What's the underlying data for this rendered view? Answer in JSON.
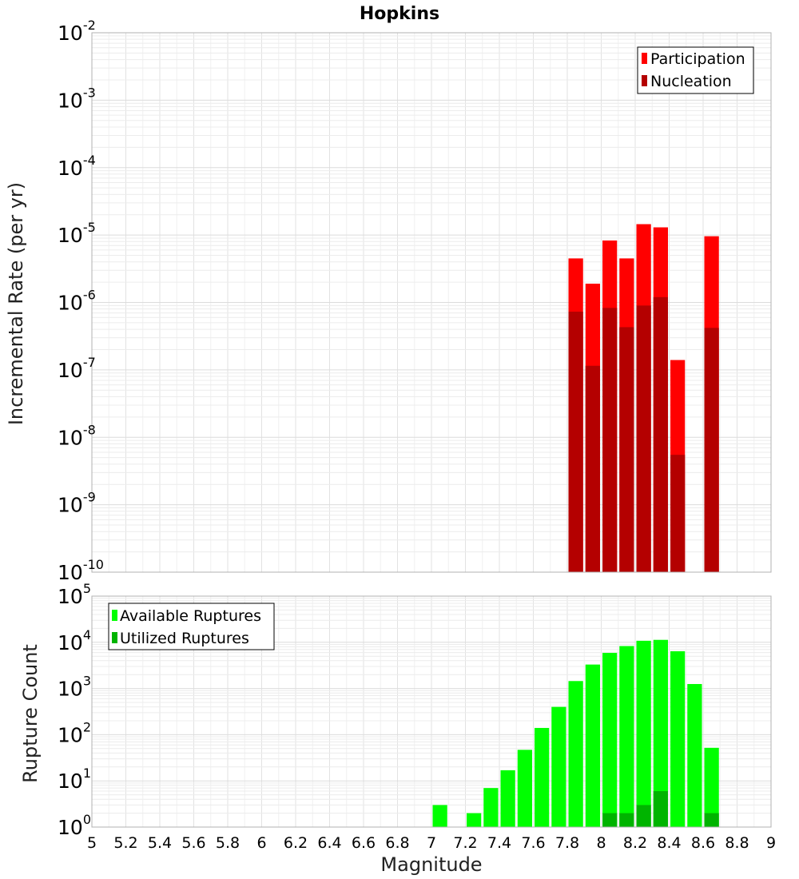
{
  "chart_data": [
    {
      "type": "bar",
      "title": "Hopkins",
      "ylabel": "Incremental Rate (per yr)",
      "xlabel": "Magnitude",
      "yscale": "log",
      "ylim_exp": [
        -10,
        -2
      ],
      "xlim": [
        5,
        9
      ],
      "bin_width": 0.1,
      "legend_position": "top-right",
      "series": [
        {
          "name": "Participation",
          "color": "#ff0000",
          "points": [
            {
              "x": 7.85,
              "y": 4.5e-06
            },
            {
              "x": 7.95,
              "y": 1.9e-06
            },
            {
              "x": 8.05,
              "y": 8.3e-06
            },
            {
              "x": 8.15,
              "y": 4.5e-06
            },
            {
              "x": 8.25,
              "y": 1.45e-05
            },
            {
              "x": 8.35,
              "y": 1.3e-05
            },
            {
              "x": 8.45,
              "y": 1.4e-07
            },
            {
              "x": 8.65,
              "y": 9.6e-06
            }
          ]
        },
        {
          "name": "Nucleation",
          "color": "#b40000",
          "points": [
            {
              "x": 7.85,
              "y": 7.3e-07
            },
            {
              "x": 7.95,
              "y": 1.15e-07
            },
            {
              "x": 8.05,
              "y": 8.3e-07
            },
            {
              "x": 8.15,
              "y": 4.3e-07
            },
            {
              "x": 8.25,
              "y": 9e-07
            },
            {
              "x": 8.35,
              "y": 1.2e-06
            },
            {
              "x": 8.45,
              "y": 5.5e-09
            },
            {
              "x": 8.65,
              "y": 4.2e-07
            }
          ]
        }
      ]
    },
    {
      "type": "bar",
      "ylabel": "Rupture Count",
      "xlabel": "Magnitude",
      "yscale": "log",
      "ylim_exp": [
        0,
        5
      ],
      "xlim": [
        5,
        9
      ],
      "bin_width": 0.1,
      "legend_position": "top-left",
      "series": [
        {
          "name": "Available Ruptures",
          "color": "#00ff00",
          "points": [
            {
              "x": 7.05,
              "y": 3
            },
            {
              "x": 7.25,
              "y": 2
            },
            {
              "x": 7.35,
              "y": 7
            },
            {
              "x": 7.45,
              "y": 17
            },
            {
              "x": 7.55,
              "y": 47
            },
            {
              "x": 7.65,
              "y": 140
            },
            {
              "x": 7.75,
              "y": 400
            },
            {
              "x": 7.85,
              "y": 1450
            },
            {
              "x": 7.95,
              "y": 3300
            },
            {
              "x": 8.05,
              "y": 5900
            },
            {
              "x": 8.15,
              "y": 8300
            },
            {
              "x": 8.25,
              "y": 10800
            },
            {
              "x": 8.35,
              "y": 11300
            },
            {
              "x": 8.45,
              "y": 6400
            },
            {
              "x": 8.55,
              "y": 1250
            },
            {
              "x": 8.65,
              "y": 52
            }
          ]
        },
        {
          "name": "Utilized Ruptures",
          "color": "#00b400",
          "points": [
            {
              "x": 7.85,
              "y": 1
            },
            {
              "x": 7.95,
              "y": 1
            },
            {
              "x": 8.05,
              "y": 2
            },
            {
              "x": 8.15,
              "y": 2
            },
            {
              "x": 8.25,
              "y": 3
            },
            {
              "x": 8.35,
              "y": 6
            },
            {
              "x": 8.45,
              "y": 1
            },
            {
              "x": 8.65,
              "y": 2
            }
          ]
        }
      ]
    }
  ],
  "x_ticks": [
    "5",
    "5.2",
    "5.4",
    "5.6",
    "5.8",
    "6",
    "6.2",
    "6.4",
    "6.6",
    "6.8",
    "7",
    "7.2",
    "7.4",
    "7.6",
    "7.8",
    "8",
    "8.2",
    "8.4",
    "8.6",
    "8.8",
    "9"
  ]
}
